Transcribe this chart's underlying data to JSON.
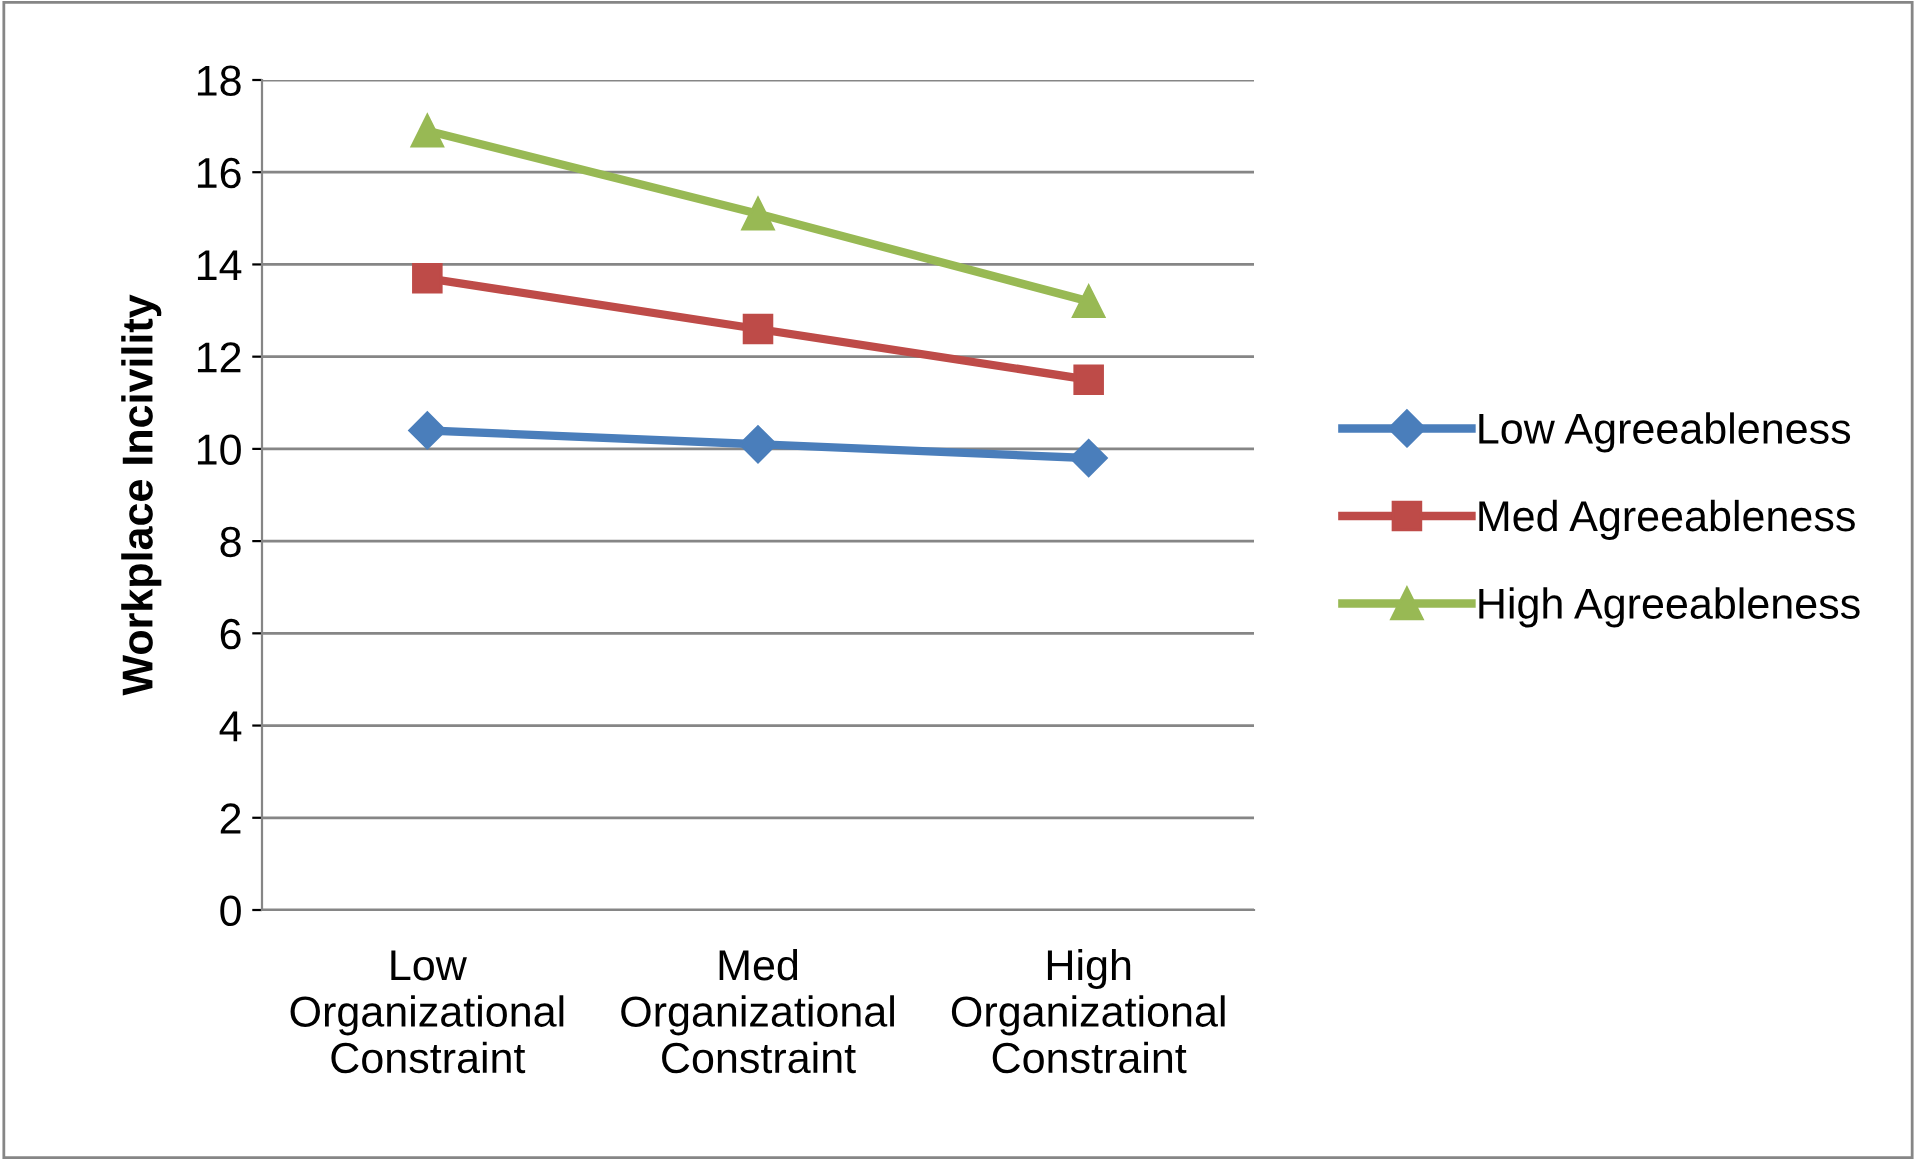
{
  "chart_data": {
    "type": "line",
    "ylabel": "Workplace Incivility",
    "categories": [
      "Low\nOrganizational\nConstraint",
      "Med\nOrganizational\nConstraint",
      "High\nOrganizational\nConstraint"
    ],
    "series": [
      {
        "name": "Low Agreeableness",
        "color": "#4a7ebb",
        "values": [
          10.4,
          10.1,
          9.8
        ],
        "marker": "diamond"
      },
      {
        "name": "Med Agreeableness",
        "color": "#be4b48",
        "values": [
          13.7,
          12.6,
          11.5
        ],
        "marker": "square"
      },
      {
        "name": "High Agreeableness",
        "color": "#98b954",
        "values": [
          16.9,
          15.1,
          13.2
        ],
        "marker": "triangle"
      }
    ],
    "ylim": [
      0,
      18
    ],
    "yticks": [
      0,
      2,
      4,
      6,
      8,
      10,
      12,
      14,
      16,
      18
    ],
    "grid": "y",
    "legend": "right",
    "line_style": "solid"
  }
}
